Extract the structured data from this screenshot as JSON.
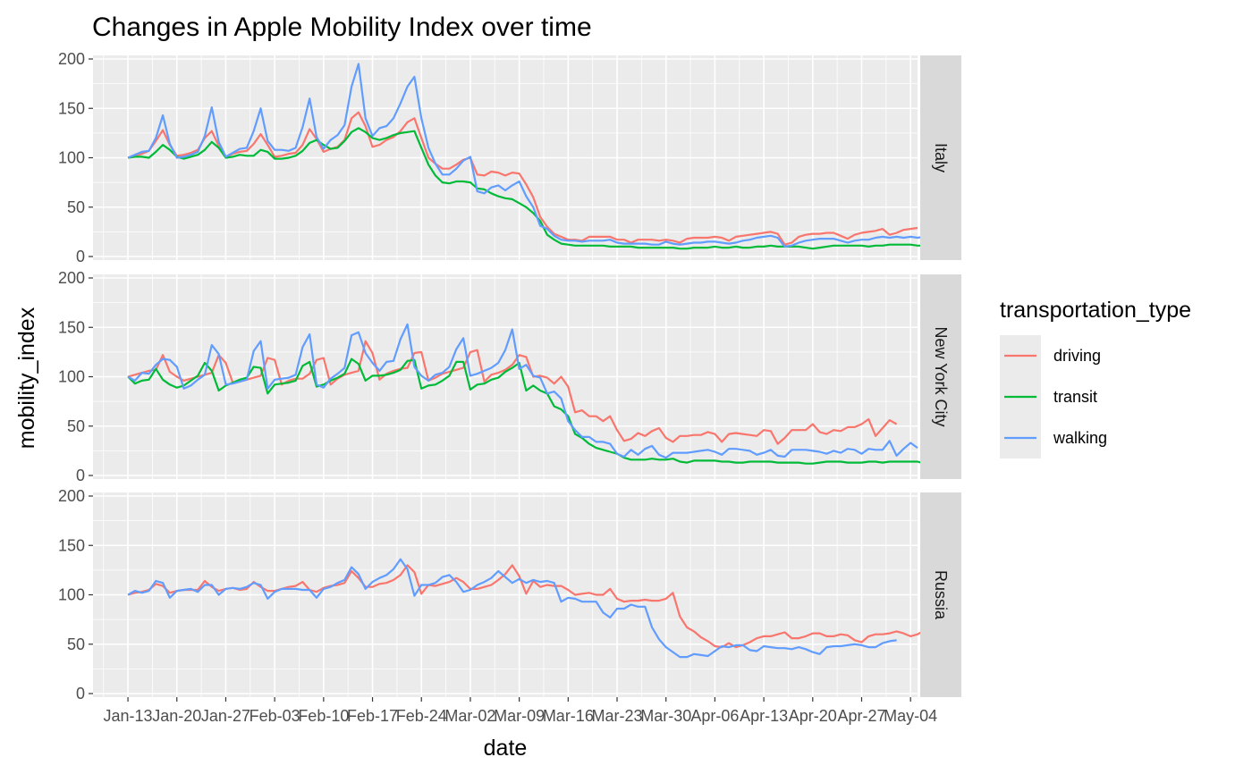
{
  "chart_data": {
    "type": "line",
    "title": "Changes in Apple Mobility Index over time",
    "xlabel": "date",
    "ylabel": "mobility_index",
    "x_start": "2020-01-13",
    "xlim": [
      "2020-01-08",
      "2020-05-05"
    ],
    "ylim": [
      0,
      200
    ],
    "y_ticks": [
      0,
      50,
      100,
      150,
      200
    ],
    "x_tick_labels": [
      "Jan-13",
      "Jan-20",
      "Jan-27",
      "Feb-03",
      "Feb-10",
      "Feb-17",
      "Feb-24",
      "Mar-02",
      "Mar-09",
      "Mar-16",
      "Mar-23",
      "Mar-30",
      "Apr-06",
      "Apr-13",
      "Apr-20",
      "Apr-27",
      "May-04"
    ],
    "grid": true,
    "legend": {
      "title": "transportation_type",
      "position": "right",
      "entries": [
        {
          "label": "driving",
          "color": "#F8766D"
        },
        {
          "label": "transit",
          "color": "#00BA38"
        },
        {
          "label": "walking",
          "color": "#619CFF"
        }
      ]
    },
    "panels": [
      {
        "name": "Italy",
        "series": [
          {
            "name": "driving",
            "color": "#F8766D",
            "values": [
              100,
              102,
              104,
              107,
              117,
              128,
              113,
              102,
              103,
              105,
              108,
              120,
              127,
              112,
              101,
              104,
              106,
              107,
              114,
              124,
              113,
              101,
              102,
              104,
              105,
              113,
              129,
              119,
              106,
              109,
              111,
              118,
              140,
              146,
              132,
              111,
              113,
              118,
              121,
              127,
              136,
              140,
              120,
              100,
              94,
              89,
              89,
              93,
              98,
              100,
              83,
              82,
              86,
              85,
              82,
              85,
              84,
              73,
              60,
              40,
              30,
              23,
              20,
              17,
              17,
              16,
              20,
              20,
              20,
              20,
              17,
              17,
              14,
              17,
              17,
              17,
              16,
              17,
              16,
              14,
              18,
              19,
              19,
              19,
              20,
              19,
              16,
              20,
              21,
              22,
              23,
              24,
              25,
              23,
              12,
              14,
              20,
              22,
              23,
              23,
              24,
              24,
              21,
              18,
              22,
              24,
              25,
              26,
              28,
              22,
              24,
              27,
              28,
              29
            ]
          },
          {
            "name": "transit",
            "color": "#00BA38",
            "values": [
              100,
              101,
              101,
              100,
              106,
              113,
              108,
              101,
              99,
              101,
              103,
              108,
              116,
              110,
              100,
              101,
              103,
              102,
              102,
              108,
              106,
              99,
              99,
              100,
              102,
              107,
              115,
              118,
              113,
              109,
              110,
              117,
              126,
              130,
              126,
              120,
              118,
              120,
              123,
              125,
              126,
              127,
              110,
              93,
              82,
              75,
              74,
              76,
              76,
              75,
              69,
              68,
              64,
              61,
              59,
              58,
              54,
              50,
              44,
              36,
              22,
              17,
              13,
              12,
              11,
              11,
              11,
              11,
              11,
              10,
              10,
              10,
              10,
              9,
              9,
              9,
              9,
              9,
              9,
              8,
              8,
              9,
              9,
              9,
              10,
              9,
              9,
              10,
              9,
              9,
              10,
              10,
              11,
              10,
              10,
              10,
              10,
              9,
              8,
              9,
              10,
              11,
              11,
              11,
              11,
              11,
              10,
              11,
              11,
              12,
              12,
              12,
              12,
              11,
              11,
              11,
              12,
              13,
              13,
              13
            ]
          },
          {
            "name": "walking",
            "color": "#619CFF",
            "values": [
              100,
              103,
              106,
              107,
              120,
              143,
              114,
              100,
              101,
              103,
              106,
              122,
              151,
              116,
              101,
              105,
              109,
              110,
              127,
              150,
              117,
              108,
              108,
              107,
              110,
              131,
              160,
              121,
              109,
              118,
              123,
              133,
              172,
              195,
              140,
              122,
              130,
              132,
              140,
              155,
              172,
              182,
              140,
              110,
              94,
              83,
              83,
              89,
              97,
              101,
              66,
              64,
              70,
              72,
              67,
              72,
              76,
              61,
              50,
              31,
              28,
              21,
              17,
              16,
              16,
              15,
              16,
              16,
              16,
              17,
              14,
              13,
              13,
              13,
              13,
              12,
              12,
              15,
              13,
              12,
              13,
              14,
              14,
              15,
              15,
              14,
              13,
              14,
              16,
              17,
              19,
              20,
              21,
              19,
              10,
              11,
              14,
              16,
              17,
              18,
              18,
              18,
              16,
              14,
              16,
              17,
              17,
              19,
              20,
              19,
              20,
              19,
              20,
              19,
              20,
              20
            ]
          }
        ]
      },
      {
        "name": "New York City",
        "series": [
          {
            "name": "driving",
            "color": "#F8766D",
            "values": [
              100,
              102,
              104,
              106,
              107,
              122,
              105,
              100,
              96,
              98,
              100,
              102,
              104,
              122,
              114,
              94,
              95,
              97,
              99,
              101,
              119,
              117,
              92,
              96,
              98,
              98,
              103,
              117,
              119,
              92,
              98,
              102,
              104,
              106,
              136,
              124,
              97,
              103,
              106,
              108,
              109,
              124,
              125,
              96,
              99,
              103,
              105,
              107,
              109,
              125,
              127,
              95,
              102,
              104,
              107,
              112,
              122,
              120,
              100,
              101,
              99,
              93,
              100,
              90,
              64,
              66,
              60,
              60,
              55,
              60,
              46,
              35,
              37,
              43,
              40,
              45,
              48,
              38,
              34,
              40,
              40,
              41,
              41,
              44,
              42,
              34,
              42,
              43,
              42,
              41,
              40,
              46,
              45,
              32,
              38,
              46,
              46,
              46,
              52,
              44,
              42,
              46,
              45,
              49,
              49,
              52,
              57,
              40,
              48,
              56,
              52
            ]
          },
          {
            "name": "transit",
            "color": "#00BA38",
            "values": [
              100,
              93,
              96,
              97,
              108,
              97,
              92,
              89,
              91,
              96,
              101,
              114,
              106,
              86,
              91,
              94,
              97,
              99,
              110,
              109,
              83,
              92,
              93,
              94,
              96,
              111,
              115,
              90,
              92,
              96,
              99,
              103,
              118,
              113,
              96,
              101,
              101,
              102,
              104,
              107,
              116,
              117,
              88,
              91,
              92,
              96,
              101,
              115,
              115,
              87,
              92,
              93,
              97,
              99,
              105,
              109,
              114,
              86,
              91,
              86,
              83,
              70,
              67,
              60,
              42,
              38,
              32,
              28,
              26,
              24,
              22,
              18,
              16,
              16,
              16,
              17,
              16,
              16,
              17,
              14,
              13,
              15,
              15,
              15,
              15,
              14,
              14,
              13,
              13,
              14,
              14,
              14,
              14,
              13,
              13,
              13,
              13,
              12,
              12,
              13,
              14,
              14,
              14,
              13,
              13,
              13,
              14,
              14,
              13,
              14,
              14,
              14,
              14,
              14,
              12,
              15,
              15,
              15
            ]
          },
          {
            "name": "walking",
            "color": "#619CFF",
            "values": [
              100,
              96,
              104,
              103,
              112,
              118,
              117,
              110,
              88,
              91,
              97,
              102,
              132,
              123,
              92,
              93,
              95,
              97,
              126,
              136,
              88,
              97,
              98,
              99,
              102,
              130,
              143,
              92,
              89,
              98,
              103,
              109,
              142,
              145,
              124,
              114,
              106,
              115,
              116,
              138,
              153,
              110,
              101,
              96,
              102,
              104,
              110,
              128,
              139,
              101,
              103,
              106,
              109,
              114,
              127,
              148,
              108,
              112,
              101,
              99,
              83,
              85,
              78,
              55,
              46,
              39,
              39,
              34,
              34,
              32,
              22,
              19,
              26,
              21,
              27,
              30,
              21,
              18,
              23,
              23,
              23,
              24,
              25,
              26,
              24,
              21,
              27,
              27,
              26,
              25,
              21,
              23,
              26,
              20,
              19,
              26,
              26,
              26,
              25,
              24,
              22,
              25,
              23,
              27,
              26,
              22,
              27,
              26,
              26,
              35,
              20,
              27,
              33,
              28
            ]
          }
        ]
      },
      {
        "name": "Russia",
        "series": [
          {
            "name": "driving",
            "color": "#F8766D",
            "values": [
              100,
              102,
              103,
              105,
              111,
              109,
              102,
              104,
              105,
              105,
              105,
              114,
              108,
              104,
              106,
              107,
              105,
              106,
              113,
              108,
              104,
              104,
              106,
              108,
              109,
              113,
              105,
              103,
              107,
              109,
              110,
              112,
              124,
              117,
              108,
              108,
              111,
              112,
              115,
              120,
              130,
              123,
              101,
              110,
              109,
              111,
              113,
              117,
              113,
              106,
              106,
              108,
              110,
              115,
              121,
              130,
              119,
              101,
              114,
              108,
              110,
              109,
              109,
              105,
              100,
              101,
              102,
              100,
              100,
              106,
              96,
              93,
              94,
              94,
              95,
              94,
              94,
              96,
              102,
              78,
              67,
              63,
              57,
              53,
              48,
              47,
              51,
              47,
              49,
              52,
              56,
              58,
              58,
              60,
              62,
              56,
              56,
              58,
              61,
              61,
              58,
              58,
              60,
              59,
              54,
              52,
              58,
              60,
              60,
              61,
              63,
              61,
              58,
              60,
              64,
              66,
              68,
              70
            ]
          },
          {
            "name": "transit",
            "color": "#00BA38",
            "values": []
          },
          {
            "name": "walking",
            "color": "#619CFF",
            "values": [
              100,
              104,
              102,
              104,
              114,
              112,
              97,
              104,
              105,
              106,
              103,
              110,
              110,
              100,
              106,
              107,
              106,
              108,
              112,
              110,
              96,
              103,
              106,
              106,
              106,
              105,
              105,
              97,
              106,
              108,
              112,
              115,
              128,
              121,
              106,
              113,
              117,
              120,
              126,
              136,
              126,
              99,
              110,
              110,
              112,
              118,
              120,
              113,
              103,
              105,
              110,
              113,
              117,
              124,
              118,
              112,
              116,
              112,
              115,
              113,
              114,
              112,
              93,
              97,
              96,
              93,
              93,
              93,
              82,
              77,
              86,
              86,
              90,
              88,
              88,
              67,
              55,
              47,
              42,
              37,
              37,
              40,
              39,
              38,
              43,
              48,
              47,
              49,
              49,
              44,
              43,
              48,
              47,
              46,
              46,
              45,
              47,
              45,
              42,
              40,
              47,
              48,
              48,
              49,
              50,
              49,
              47,
              47,
              51,
              53,
              54
            ]
          }
        ]
      }
    ]
  }
}
